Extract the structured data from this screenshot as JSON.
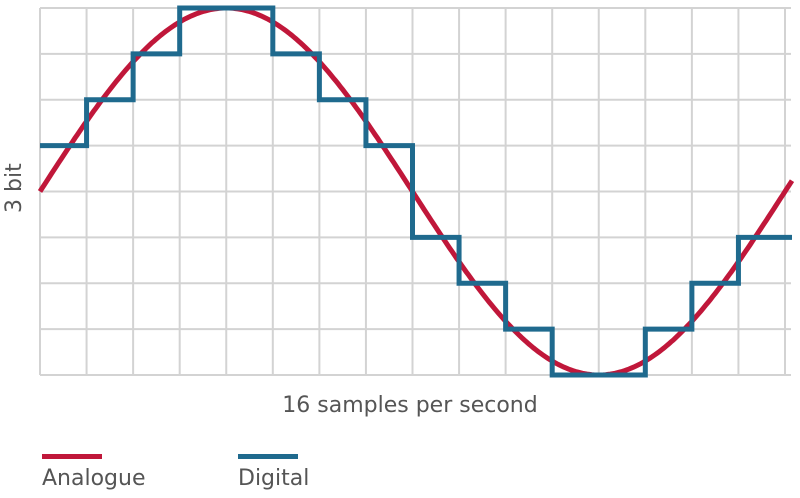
{
  "chart_data": {
    "type": "line",
    "xlabel": "16 samples per second",
    "ylabel": "3 bit",
    "xlim": [
      0,
      16
    ],
    "ylim": [
      0,
      8
    ],
    "grid": true,
    "legend_placement": "bottom-left",
    "series": [
      {
        "name": "Analogue",
        "color": "#c0173a",
        "shape": "sine",
        "amplitude": 4,
        "offset": 4,
        "period": 16,
        "peak_at": 4
      },
      {
        "name": "Digital",
        "color": "#1f6a8e",
        "shape": "step",
        "x": [
          0,
          1,
          2,
          3,
          4,
          5,
          6,
          7,
          8,
          9,
          10,
          11,
          12,
          13,
          14,
          15
        ],
        "values": [
          5,
          6,
          7,
          8,
          8,
          7,
          6,
          5,
          3,
          2,
          1,
          0,
          0,
          1,
          2,
          3
        ]
      }
    ]
  },
  "colors": {
    "grid": "#d3d3d3",
    "text": "#555555"
  }
}
